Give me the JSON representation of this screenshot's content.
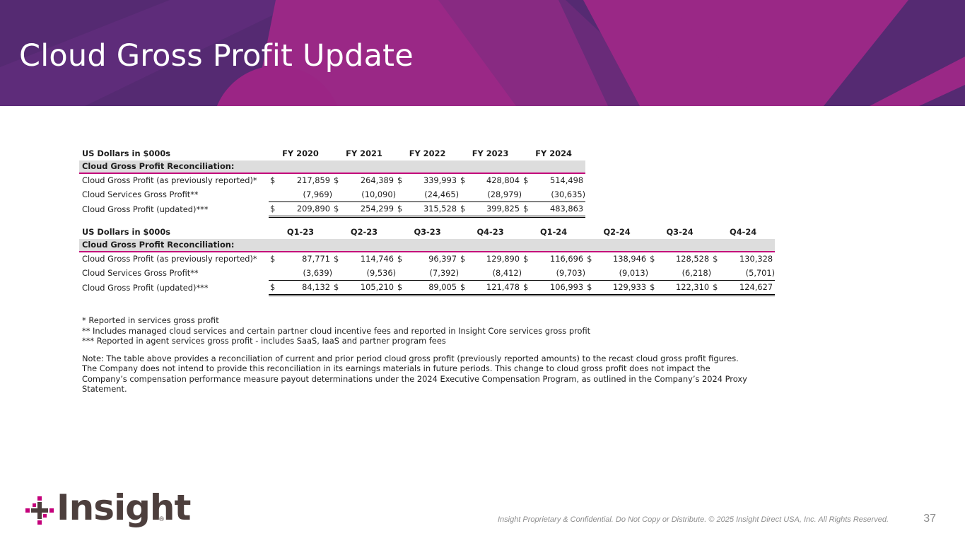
{
  "slide": {
    "title": "Cloud Gross Profit Update",
    "page_number": "37",
    "footer": "Insight Proprietary & Confidential. Do Not Copy or Distribute. © 2025 Insight Direct USA, Inc. All Rights Reserved.",
    "logo": {
      "icon": "insight-logo-icon",
      "wordmark": "Insight",
      "registered": "®"
    },
    "colors": {
      "banner": "#552a72",
      "accent": "#c4007a",
      "section_fill": "#dddddd"
    }
  },
  "annual_table": {
    "units_label": "US Dollars in $000s",
    "columns": [
      "FY 2020",
      "FY 2021",
      "FY 2022",
      "FY 2023",
      "FY 2024"
    ],
    "section_label": "Cloud Gross Profit Reconciliation:",
    "rows": [
      {
        "label": "Cloud Gross Profit (as previously reported)*",
        "currency": "$",
        "values": [
          "217,859",
          "264,389",
          "339,993",
          "428,804",
          "514,498"
        ]
      },
      {
        "label": "Cloud Services Gross Profit**",
        "currency": "",
        "values": [
          "(7,969)",
          "(10,090)",
          "(24,465)",
          "(28,979)",
          "(30,635)"
        ]
      },
      {
        "label": "Cloud Gross Profit (updated)***",
        "currency": "$",
        "values": [
          "209,890",
          "254,299",
          "315,528",
          "399,825",
          "483,863"
        ]
      }
    ]
  },
  "quarterly_table": {
    "units_label": "US Dollars in $000s",
    "columns": [
      "Q1-23",
      "Q2-23",
      "Q3-23",
      "Q4-23",
      "Q1-24",
      "Q2-24",
      "Q3-24",
      "Q4-24"
    ],
    "section_label": "Cloud Gross Profit Reconciliation:",
    "rows": [
      {
        "label": "Cloud Gross Profit (as previously reported)*",
        "currency": "$",
        "values": [
          "87,771",
          "114,746",
          "96,397",
          "129,890",
          "116,696",
          "138,946",
          "128,528",
          "130,328"
        ]
      },
      {
        "label": "Cloud Services Gross Profit**",
        "currency": "",
        "values": [
          "(3,639)",
          "(9,536)",
          "(7,392)",
          "(8,412)",
          "(9,703)",
          "(9,013)",
          "(6,218)",
          "(5,701)"
        ]
      },
      {
        "label": "Cloud Gross Profit (updated)***",
        "currency": "$",
        "values": [
          "84,132",
          "105,210",
          "89,005",
          "121,478",
          "106,993",
          "129,933",
          "122,310",
          "124,627"
        ]
      }
    ]
  },
  "notes": {
    "footnote_1": "* Reported in services gross profit",
    "footnote_2": "** Includes managed cloud services and certain partner cloud incentive fees and reported in Insight Core services gross profit",
    "footnote_3": "*** Reported in agent services gross profit - includes SaaS, IaaS and partner program fees",
    "note_lines": [
      "Note: The table above provides a reconciliation of current and prior period cloud gross profit (previously reported amounts) to the recast cloud gross profit figures.",
      "The Company does not intend to provide this reconciliation in its earnings materials in future periods. This change to cloud gross profit does not impact the",
      "Company’s compensation performance measure payout determinations under the 2024 Executive Compensation Program, as outlined in the Company’s 2024 Proxy",
      "Statement."
    ]
  }
}
